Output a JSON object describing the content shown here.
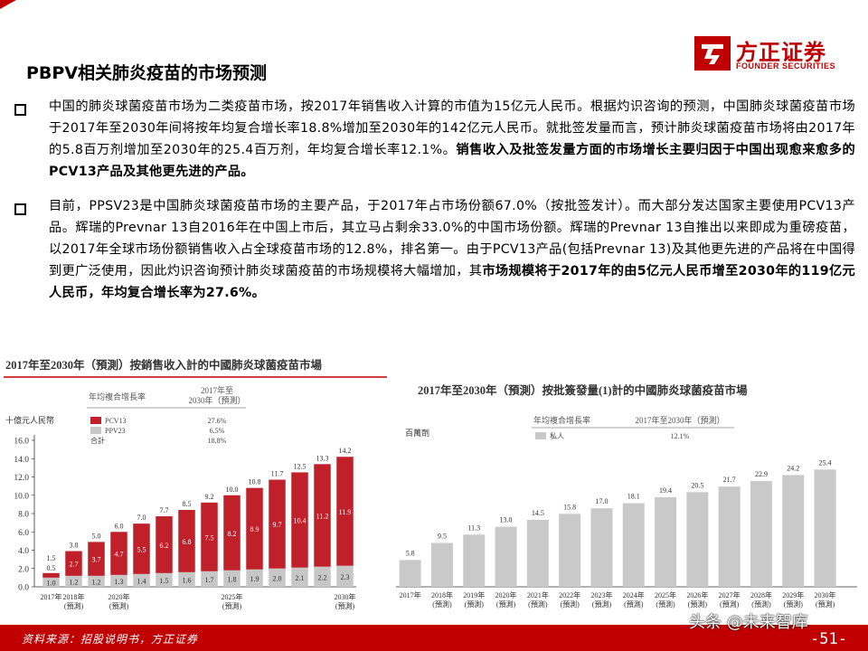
{
  "brand": {
    "name_cn": "方正证券",
    "name_en": "FOUNDER SECURITIES",
    "color": "#c00000"
  },
  "page_title": "PBPV相关肺炎疫苗的市场预测",
  "paragraphs": [
    {
      "plain": "中国的肺炎球菌疫苗市场为二类疫苗市场，按2017年销售收入计算的市值为15亿元人民币。根据灼识咨询的预测，中国肺炎球菌疫苗市场于2017年至2030年间将按年均复合增长率18.8%增加至2030年的142亿元人民币。就批签发量而言，预计肺炎球菌疫苗市场将由2017年的5.8百万剂增加至2030年的25.4百万剂，年均复合增长率12.1%。",
      "bold": "销售收入及批签发量方面的市场增长主要归因于中国出现愈来愈多的PCV13产品及其他更先进的产品。"
    },
    {
      "plain": "目前，PPSV23是中国肺炎球菌疫苗市场的主要产品，于2017年占市场份额67.0%（按批签发计）。而大部分发达国家主要使用PCV13产品。辉瑞的Prevnar 13自2016年在中国上市后，其立马占剩余33.0%的中国市场份额。辉瑞的Prevnar 13自推出以来即成为重磅疫苗，以2017年全球市场份额销售收入占全球疫苗市场的12.8%，排名第一。由于PCV13产品(包括Prevnar 13)及其他更先进的产品将在中国得到更广泛使用，因此灼识咨询预计肺炎球菌疫苗的市场规模将大幅增加，其",
      "bold": "市场规模将于2017年的由5亿元人民币增至2030年的119亿元人民币，年均复合增长率为27.6%。"
    }
  ],
  "footer": {
    "source": "资料来源：招股说明书，方正证券",
    "watermark": "头条 @未来智库",
    "page_number": "-51-"
  },
  "chart_data": [
    {
      "type": "bar",
      "stacked": true,
      "title": "2017年至2030年（預測）按銷售收入計的中國肺炎球菌疫苗市場",
      "ylabel": "十億元人民幣",
      "ylim": [
        0,
        16
      ],
      "yticks": [
        "0.0",
        "2.0",
        "4.0",
        "6.0",
        "8.0",
        "10.0",
        "12.0",
        "14.0",
        "16.0"
      ],
      "categories": [
        "2017",
        "2018",
        "2019",
        "2020",
        "2021",
        "2022",
        "2023",
        "2024",
        "2025",
        "2026",
        "2027",
        "2028",
        "2029",
        "2030"
      ],
      "xlabels": [
        {
          "text": "2017年",
          "sub": ""
        },
        {
          "text": "2018年",
          "sub": "(預測)"
        },
        {
          "text": "2020年",
          "sub": "(預測)"
        },
        {
          "text": "2025年",
          "sub": "(預測)"
        },
        {
          "text": "2030年",
          "sub": "(預測)"
        }
      ],
      "series": [
        {
          "name": "PPV23",
          "color": "#c7c7c7",
          "values": [
            1.0,
            1.2,
            1.2,
            1.3,
            1.4,
            1.5,
            1.6,
            1.7,
            1.8,
            1.9,
            2.0,
            2.1,
            2.2,
            2.3
          ]
        },
        {
          "name": "PCV13",
          "color": "#c0202a",
          "values": [
            0.5,
            2.7,
            3.7,
            4.7,
            5.5,
            6.2,
            6.8,
            7.5,
            8.2,
            8.9,
            9.7,
            10.4,
            11.2,
            11.9
          ]
        }
      ],
      "totals": [
        1.5,
        3.8,
        5.0,
        6.0,
        7.0,
        7.7,
        8.5,
        9.2,
        10.0,
        10.8,
        11.7,
        12.5,
        13.3,
        14.2
      ],
      "legend": {
        "header_left": "年均複合增長率",
        "header_right_1": "2017年至",
        "header_right_2": "2030年（預測）",
        "rows": [
          {
            "name": "PCV13",
            "rate": "27.6%"
          },
          {
            "name": "PPV23",
            "rate": "6.5%"
          },
          {
            "name": "合計",
            "rate": "18.8%"
          }
        ]
      }
    },
    {
      "type": "bar",
      "title": "2017年至2030年（預測）按批簽發量(1)計的中國肺炎球菌疫苗市場",
      "ylabel": "百萬劑",
      "categories": [
        "2017年",
        "2018年",
        "2019年",
        "2020年",
        "2021年",
        "2022年",
        "2023年",
        "2024年",
        "2025年",
        "2026年",
        "2027年",
        "2028年",
        "2029年",
        "2030年"
      ],
      "sub_labels": [
        "",
        "(預測)",
        "(預測)",
        "(預測)",
        "(預測)",
        "(預測)",
        "(預測)",
        "(預測)",
        "(預測)",
        "(預測)",
        "(預測)",
        "(預測)",
        "(預測)",
        "(預測)"
      ],
      "values": [
        5.8,
        9.5,
        11.3,
        13.0,
        14.5,
        15.8,
        17.0,
        18.1,
        19.4,
        20.5,
        21.7,
        22.9,
        24.2,
        25.4
      ],
      "labels": [
        "5.8",
        "9.5",
        "11.3",
        "13.0",
        "14.5",
        "15.8",
        "17.0",
        "18.1",
        "19.4",
        "20.5",
        "21.7",
        "22.9",
        "24.2",
        "25.4"
      ],
      "color": "#c9c9c9",
      "legend": {
        "header_left": "年均複合增長率",
        "header_right": "2017年至2030年（預測）",
        "rows": [
          {
            "name": "私人",
            "rate": "12.1%"
          }
        ]
      }
    }
  ]
}
